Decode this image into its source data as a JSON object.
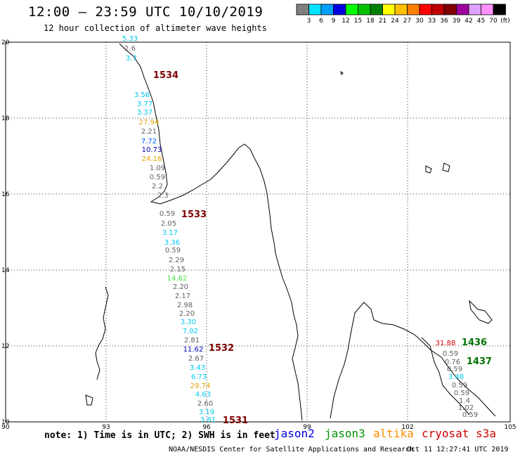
{
  "header": {
    "title": "12:00 – 23:59 UTC 10/10/2019",
    "subtitle": "12 hour collection of altimeter wave heights"
  },
  "legend": {
    "unit": "(ft)",
    "bins": [
      {
        "label": "3",
        "color": "#808080"
      },
      {
        "label": "6",
        "color": "#00e5ff"
      },
      {
        "label": "9",
        "color": "#00a0ff"
      },
      {
        "label": "12",
        "color": "#0000e0"
      },
      {
        "label": "15",
        "color": "#00ff00"
      },
      {
        "label": "18",
        "color": "#00c000"
      },
      {
        "label": "21",
        "color": "#008000"
      },
      {
        "label": "24",
        "color": "#ffff00"
      },
      {
        "label": "27",
        "color": "#ffc000"
      },
      {
        "label": "30",
        "color": "#ff8000"
      },
      {
        "label": "33",
        "color": "#ff0000"
      },
      {
        "label": "36",
        "color": "#c00000"
      },
      {
        "label": "39",
        "color": "#800000"
      },
      {
        "label": "42",
        "color": "#a000a0"
      },
      {
        "label": "45",
        "color": "#e0a0ff"
      },
      {
        "label": "70",
        "color": "#ff90ff"
      },
      {
        "label": "",
        "color": "#000000"
      }
    ]
  },
  "axes": {
    "lon_ticks": [
      "90",
      "93",
      "96",
      "99",
      "102",
      "105"
    ],
    "lat_ticks": [
      "20",
      "18",
      "16",
      "14",
      "12",
      "10"
    ]
  },
  "colors": {
    "grey": "#606060",
    "cyan": "#00c8f0",
    "blue": "#0060ff",
    "navy": "#0000b0",
    "green": "#40e040",
    "orange": "#e0a000",
    "red": "#e00000",
    "maroon": "#800000",
    "darkgreen": "#007000"
  },
  "observations": [
    {
      "value": "5.33",
      "color": "cyan"
    },
    {
      "value": "2.6",
      "color": "grey"
    },
    {
      "value": "3.7",
      "color": "cyan"
    },
    {
      "value": "1534",
      "color": "maroon"
    },
    {
      "value": "3.56",
      "color": "cyan"
    },
    {
      "value": "3.77",
      "color": "cyan"
    },
    {
      "value": "3.37",
      "color": "cyan"
    },
    {
      "value": "27.94",
      "color": "orange"
    },
    {
      "value": "2.21",
      "color": "grey"
    },
    {
      "value": "7.72",
      "color": "blue"
    },
    {
      "value": "10.73",
      "color": "navy"
    },
    {
      "value": "24.16",
      "color": "orange"
    },
    {
      "value": "1.09",
      "color": "grey"
    },
    {
      "value": "0.59",
      "color": "grey"
    },
    {
      "value": "2.2",
      "color": "grey"
    },
    {
      "value": "2.3",
      "color": "grey"
    },
    {
      "value": "0.59",
      "color": "grey"
    },
    {
      "value": "1533",
      "color": "maroon"
    },
    {
      "value": "2.05",
      "color": "grey"
    },
    {
      "value": "3.17",
      "color": "cyan"
    },
    {
      "value": "3.36",
      "color": "cyan"
    },
    {
      "value": "0.59",
      "color": "grey"
    },
    {
      "value": "2.29",
      "color": "grey"
    },
    {
      "value": "2.15",
      "color": "grey"
    },
    {
      "value": "14.62",
      "color": "green"
    },
    {
      "value": "2.20",
      "color": "grey"
    },
    {
      "value": "2.17",
      "color": "grey"
    },
    {
      "value": "2.98",
      "color": "grey"
    },
    {
      "value": "2.20",
      "color": "grey"
    },
    {
      "value": "3.30",
      "color": "cyan"
    },
    {
      "value": "7.02",
      "color": "cyan"
    },
    {
      "value": "2.81",
      "color": "grey"
    },
    {
      "value": "11.62",
      "color": "navy"
    },
    {
      "value": "1532",
      "color": "maroon"
    },
    {
      "value": "2.67",
      "color": "grey"
    },
    {
      "value": "3.43",
      "color": "cyan"
    },
    {
      "value": "6.73",
      "color": "cyan"
    },
    {
      "value": "29.74",
      "color": "orange"
    },
    {
      "value": "4.63",
      "color": "cyan"
    },
    {
      "value": "2.60",
      "color": "grey"
    },
    {
      "value": "3.19",
      "color": "cyan"
    },
    {
      "value": "3.81",
      "color": "cyan"
    },
    {
      "value": "1531",
      "color": "maroon"
    },
    {
      "value": "31.88",
      "color": "red"
    },
    {
      "value": "1436",
      "color": "darkgreen"
    },
    {
      "value": "0.59",
      "color": "grey"
    },
    {
      "value": "0.76",
      "color": "grey"
    },
    {
      "value": "1437",
      "color": "darkgreen"
    },
    {
      "value": "0.59",
      "color": "grey"
    },
    {
      "value": "3.48",
      "color": "cyan"
    },
    {
      "value": "0.59",
      "color": "grey"
    },
    {
      "value": "0.59",
      "color": "grey"
    },
    {
      "value": "1.4",
      "color": "grey"
    },
    {
      "value": "1.02",
      "color": "grey"
    },
    {
      "value": "0.59",
      "color": "grey"
    }
  ],
  "footer": {
    "note": "note: 1) Time is in UTC; 2) SWH is in feet",
    "satellites": [
      {
        "name": "jason2",
        "color": "#0000e0"
      },
      {
        "name": "jason3",
        "color": "#009000"
      },
      {
        "name": "altika",
        "color": "#ff8c00"
      },
      {
        "name": "cryosat s3a",
        "color": "#d00000"
      }
    ],
    "credit": "NOAA/NESDIS Center for Satellite Applications and Research",
    "timestamp": "Oct 11 12:27:41 UTC 2019"
  }
}
